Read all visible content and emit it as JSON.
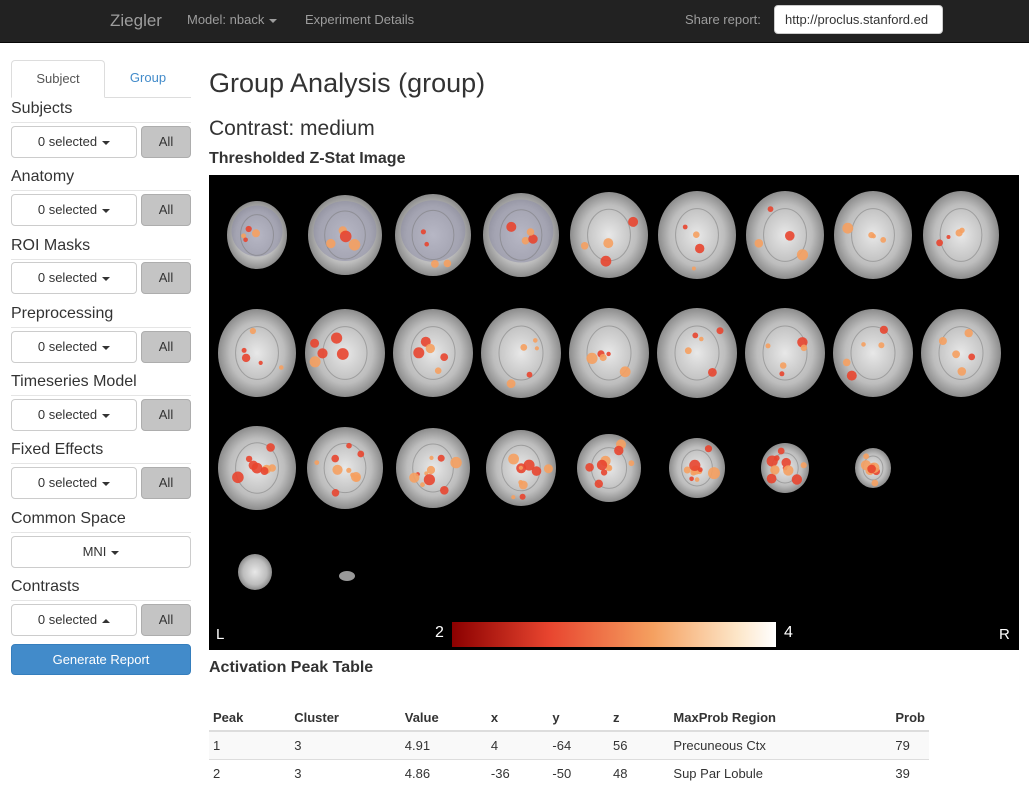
{
  "navbar": {
    "brand": "Ziegler",
    "model_label": "Model: nback",
    "experiment_label": "Experiment Details",
    "share_label": "Share report:",
    "share_url": "http://proclus.stanford.ed"
  },
  "sidebar": {
    "tabs": [
      "Subject",
      "Group"
    ],
    "sections": [
      {
        "title": "Subjects",
        "dropdown": "0 selected",
        "all": "All"
      },
      {
        "title": "Anatomy",
        "dropdown": "0 selected",
        "all": "All"
      },
      {
        "title": "ROI Masks",
        "dropdown": "0 selected",
        "all": "All"
      },
      {
        "title": "Preprocessing",
        "dropdown": "0 selected",
        "all": "All"
      },
      {
        "title": "Timeseries Model",
        "dropdown": "0 selected",
        "all": "All"
      },
      {
        "title": "Fixed Effects",
        "dropdown": "0 selected",
        "all": "All"
      },
      {
        "title": "Common Space",
        "dropdown": "MNI"
      },
      {
        "title": "Contrasts",
        "dropdown": "0 selected",
        "all": "All"
      }
    ],
    "generate_label": "Generate Report"
  },
  "main": {
    "title": "Group Analysis (group)",
    "contrast": "Contrast: medium",
    "zstat_heading": "Thresholded Z-Stat Image",
    "left_label": "L",
    "right_label": "R",
    "colorbar_min": "2",
    "colorbar_max": "4",
    "colorbar_colors": [
      "#8b0000",
      "#e8452f",
      "#f5a060",
      "#fde6c8",
      "#ffffff"
    ],
    "peak_heading": "Activation Peak Table",
    "table": {
      "columns": [
        "Peak",
        "Cluster",
        "Value",
        "x",
        "y",
        "z",
        "MaxProb Region",
        "Prob"
      ],
      "rows": [
        [
          "1",
          "3",
          "4.91",
          "4",
          "-64",
          "56",
          "Precuneous Ctx",
          "79"
        ],
        [
          "2",
          "3",
          "4.86",
          "-36",
          "-50",
          "48",
          "Sup Par Lobule",
          "39"
        ]
      ]
    }
  }
}
